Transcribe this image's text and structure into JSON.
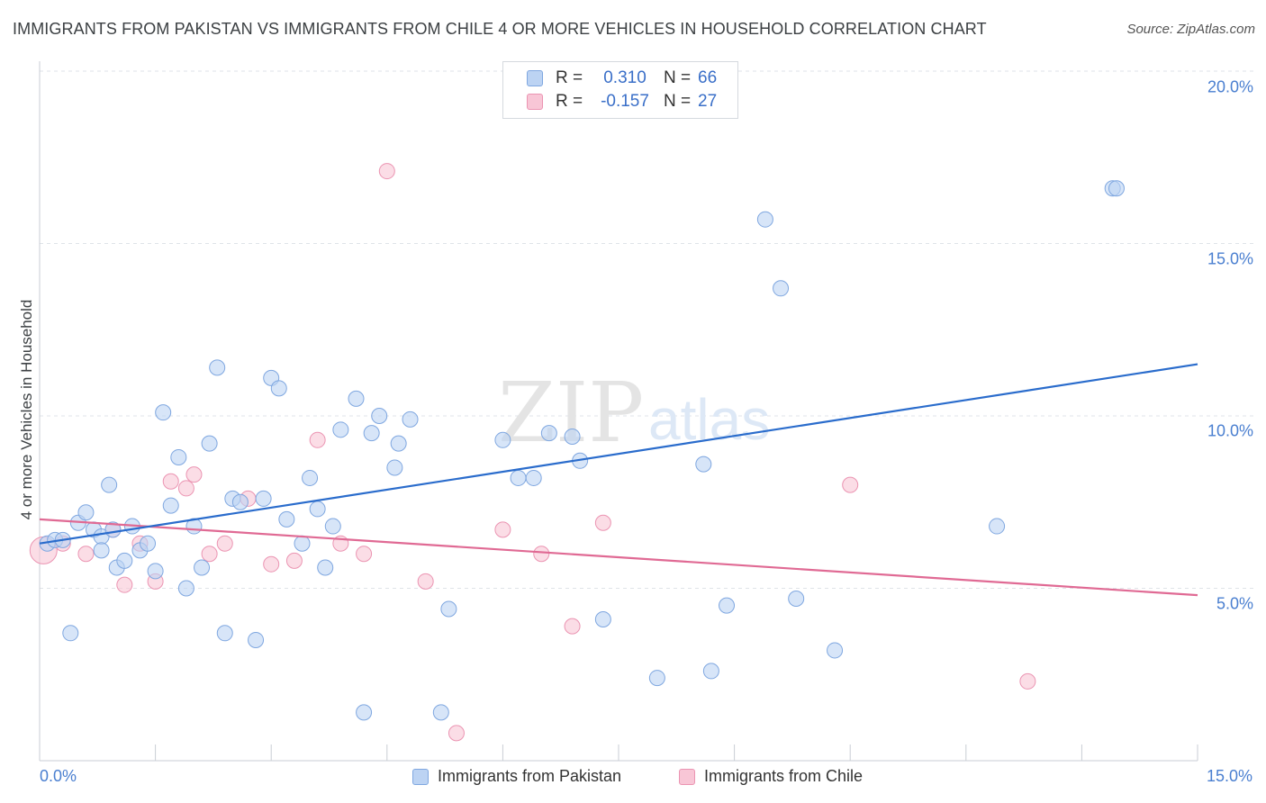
{
  "header": {
    "title": "IMMIGRANTS FROM PAKISTAN VS IMMIGRANTS FROM CHILE 4 OR MORE VEHICLES IN HOUSEHOLD CORRELATION CHART",
    "source": "Source: ZipAtlas.com"
  },
  "watermark": {
    "zip": "ZIP",
    "atlas": "atlas"
  },
  "legend": {
    "rows": [
      {
        "r_label": "R =",
        "r_value": "0.310",
        "n_label": "N =",
        "n_value": "66"
      },
      {
        "r_label": "R =",
        "r_value": "-0.157",
        "n_label": "N =",
        "n_value": "27"
      }
    ]
  },
  "bottom_legend": {
    "series1": "Immigrants from Pakistan",
    "series2": "Immigrants from Chile"
  },
  "colors": {
    "pakistan_fill": "#bcd3f3",
    "pakistan_stroke": "#7fa7e0",
    "pakistan_line": "#2a6ccc",
    "chile_fill": "#f8c6d6",
    "chile_stroke": "#eb94b2",
    "chile_line": "#e06a94",
    "grid": "#dfe3e8",
    "axis": "#c9ced4"
  },
  "chart_data": {
    "type": "scatter",
    "title": "IMMIGRANTS FROM PAKISTAN VS IMMIGRANTS FROM CHILE 4 OR MORE VEHICLES IN HOUSEHOLD CORRELATION CHART",
    "xlabel": "",
    "ylabel": "4 or more Vehicles in Household",
    "xlim": [
      0,
      15
    ],
    "ylim": [
      0,
      20
    ],
    "x_tick_labels": [
      "0.0%",
      "15.0%"
    ],
    "y_ticks": [
      5,
      10,
      15,
      20
    ],
    "y_tick_labels": [
      "5.0%",
      "10.0%",
      "15.0%",
      "20.0%"
    ],
    "grid": true,
    "legend_position": "top-center",
    "series": [
      {
        "name": "Immigrants from Pakistan",
        "R": 0.31,
        "N": 66,
        "trend": {
          "x": [
            0,
            15
          ],
          "y": [
            6.3,
            11.5
          ]
        },
        "points": [
          [
            0.1,
            6.3
          ],
          [
            0.2,
            6.4
          ],
          [
            0.3,
            6.4
          ],
          [
            0.4,
            3.7
          ],
          [
            0.5,
            6.9
          ],
          [
            0.6,
            7.2
          ],
          [
            0.7,
            6.7
          ],
          [
            0.8,
            6.5
          ],
          [
            0.8,
            6.1
          ],
          [
            0.9,
            8.0
          ],
          [
            0.95,
            6.7
          ],
          [
            1.0,
            5.6
          ],
          [
            1.1,
            5.8
          ],
          [
            1.2,
            6.8
          ],
          [
            1.3,
            6.1
          ],
          [
            1.4,
            6.3
          ],
          [
            1.5,
            5.5
          ],
          [
            1.6,
            10.1
          ],
          [
            1.7,
            7.4
          ],
          [
            1.8,
            8.8
          ],
          [
            1.9,
            5.0
          ],
          [
            2.0,
            6.8
          ],
          [
            2.1,
            5.6
          ],
          [
            2.2,
            9.2
          ],
          [
            2.3,
            11.4
          ],
          [
            2.4,
            3.7
          ],
          [
            2.5,
            7.6
          ],
          [
            2.6,
            7.5
          ],
          [
            2.8,
            3.5
          ],
          [
            2.9,
            7.6
          ],
          [
            3.0,
            11.1
          ],
          [
            3.1,
            10.8
          ],
          [
            3.2,
            7.0
          ],
          [
            3.4,
            6.3
          ],
          [
            3.5,
            8.2
          ],
          [
            3.6,
            7.3
          ],
          [
            3.7,
            5.6
          ],
          [
            3.8,
            6.8
          ],
          [
            3.9,
            9.6
          ],
          [
            4.1,
            10.5
          ],
          [
            4.2,
            1.4
          ],
          [
            4.3,
            9.5
          ],
          [
            4.4,
            10.0
          ],
          [
            4.6,
            8.5
          ],
          [
            4.65,
            9.2
          ],
          [
            4.8,
            9.9
          ],
          [
            5.2,
            1.4
          ],
          [
            5.3,
            4.4
          ],
          [
            6.0,
            9.3
          ],
          [
            6.2,
            8.2
          ],
          [
            6.4,
            8.2
          ],
          [
            6.6,
            9.5
          ],
          [
            6.9,
            9.4
          ],
          [
            7.0,
            8.7
          ],
          [
            7.3,
            4.1
          ],
          [
            8.0,
            2.4
          ],
          [
            8.6,
            8.6
          ],
          [
            8.7,
            2.6
          ],
          [
            8.9,
            4.5
          ],
          [
            9.4,
            15.7
          ],
          [
            9.6,
            13.7
          ],
          [
            9.8,
            4.7
          ],
          [
            10.3,
            3.2
          ],
          [
            12.4,
            6.8
          ],
          [
            13.9,
            16.6
          ],
          [
            13.95,
            16.6
          ]
        ]
      },
      {
        "name": "Immigrants from Chile",
        "R": -0.157,
        "N": 27,
        "trend": {
          "x": [
            0,
            15
          ],
          "y": [
            7.0,
            4.8
          ]
        },
        "points": [
          [
            0.05,
            6.1
          ],
          [
            0.3,
            6.3
          ],
          [
            0.6,
            6.0
          ],
          [
            0.95,
            6.7
          ],
          [
            1.1,
            5.1
          ],
          [
            1.3,
            6.3
          ],
          [
            1.5,
            5.2
          ],
          [
            1.7,
            8.1
          ],
          [
            1.9,
            7.9
          ],
          [
            2.0,
            8.3
          ],
          [
            2.2,
            6.0
          ],
          [
            2.4,
            6.3
          ],
          [
            2.7,
            7.6
          ],
          [
            3.0,
            5.7
          ],
          [
            3.3,
            5.8
          ],
          [
            3.6,
            9.3
          ],
          [
            3.9,
            6.3
          ],
          [
            4.2,
            6.0
          ],
          [
            4.5,
            17.1
          ],
          [
            5.0,
            5.2
          ],
          [
            5.4,
            0.8
          ],
          [
            6.0,
            6.7
          ],
          [
            6.5,
            6.0
          ],
          [
            6.9,
            3.9
          ],
          [
            7.3,
            6.9
          ],
          [
            10.5,
            8.0
          ],
          [
            12.8,
            2.3
          ]
        ]
      }
    ]
  }
}
